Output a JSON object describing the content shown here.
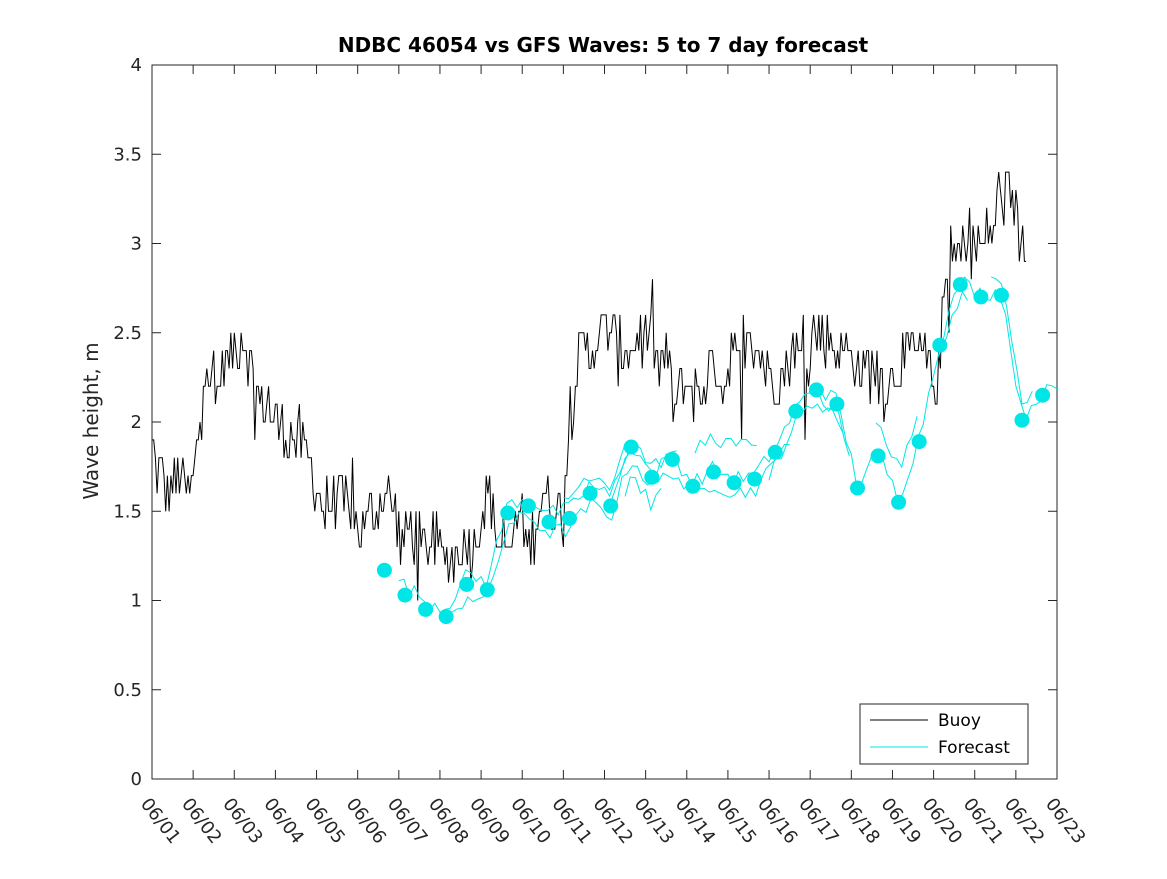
{
  "chart_data": {
    "type": "line",
    "title": "NDBC 46054 vs GFS Waves: 5 to 7 day forecast",
    "xlabel": "",
    "ylabel": "Wave height, m",
    "xlim": [
      0,
      22
    ],
    "ylim": [
      0,
      4
    ],
    "x_unit": "days from 06/01",
    "xticks": [
      0,
      1,
      2,
      3,
      4,
      5,
      6,
      7,
      8,
      9,
      10,
      11,
      12,
      13,
      14,
      15,
      16,
      17,
      18,
      19,
      20,
      21,
      22
    ],
    "xtick_labels": [
      "06/01",
      "06/02",
      "06/03",
      "06/04",
      "06/05",
      "06/06",
      "06/07",
      "06/08",
      "06/09",
      "06/10",
      "06/11",
      "06/12",
      "06/13",
      "06/14",
      "06/15",
      "06/16",
      "06/17",
      "06/18",
      "06/19",
      "06/20",
      "06/21",
      "06/22",
      "06/23"
    ],
    "yticks": [
      0,
      0.5,
      1,
      1.5,
      2,
      2.5,
      3,
      3.5,
      4
    ],
    "ytick_labels": [
      "0",
      "0.5",
      "1",
      "1.5",
      "2",
      "2.5",
      "3",
      "3.5",
      "4"
    ],
    "grid": false,
    "legend": {
      "location": "bottom-right",
      "entries": [
        {
          "label": "Buoy",
          "color": "#000000"
        },
        {
          "label": "Forecast",
          "color": "#00e6e6"
        }
      ]
    },
    "colors": {
      "buoy": "#000000",
      "forecast": "#00e6e6",
      "marker": "#00e6e6"
    },
    "buoy_anchors": {
      "x": [
        0,
        0.15,
        0.4,
        0.7,
        0.95,
        1.1,
        1.3,
        1.5,
        1.7,
        2.0,
        2.2,
        2.4,
        2.6,
        2.85,
        3.0,
        3.3,
        3.6,
        3.9,
        4.2,
        4.5,
        4.8,
        5.1,
        5.4,
        5.7,
        5.9,
        6.05,
        6.3,
        6.6,
        6.9,
        7.2,
        7.5,
        7.8,
        8.0,
        8.2,
        8.45,
        8.6,
        8.8,
        8.95,
        9.1,
        9.3,
        9.5,
        9.7,
        9.9,
        10.1,
        10.3,
        10.5,
        10.7,
        10.9,
        11.1,
        11.3,
        11.6,
        11.9,
        12.1,
        12.3,
        12.5,
        12.7,
        12.9,
        13.1,
        13.3,
        13.5,
        13.7,
        13.9,
        14.1,
        14.3,
        14.6,
        14.9,
        15.1,
        15.3,
        15.5,
        15.7,
        15.9,
        16.1,
        16.3,
        16.6,
        16.9,
        17.2,
        17.5,
        17.8,
        18.1,
        18.4,
        18.7,
        18.9,
        19.1,
        19.25,
        19.4,
        19.6,
        19.8,
        20.0,
        20.2,
        20.45,
        20.6,
        20.8,
        21.0,
        21.1,
        21.25
      ],
      "y": [
        1.9,
        1.7,
        1.6,
        1.7,
        1.6,
        1.9,
        2.4,
        2.1,
        2.3,
        2.4,
        2.5,
        2.3,
        2.1,
        2.1,
        2.0,
        1.9,
        1.9,
        1.7,
        1.5,
        1.6,
        1.5,
        1.4,
        1.5,
        1.6,
        1.5,
        1.3,
        1.4,
        1.3,
        1.3,
        1.2,
        1.3,
        1.3,
        1.5,
        1.6,
        1.3,
        1.2,
        1.4,
        1.5,
        1.3,
        1.4,
        1.6,
        1.5,
        1.5,
        1.8,
        2.3,
        2.4,
        2.4,
        2.5,
        2.5,
        2.4,
        2.4,
        2.5,
        2.5,
        2.3,
        2.4,
        2.1,
        2.2,
        2.2,
        2.1,
        2.3,
        2.3,
        2.2,
        2.4,
        2.3,
        2.5,
        2.3,
        2.3,
        2.2,
        2.4,
        2.4,
        2.3,
        2.5,
        2.5,
        2.4,
        2.4,
        2.3,
        2.3,
        2.2,
        2.3,
        2.4,
        2.4,
        2.3,
        2.2,
        2.7,
        2.9,
        2.9,
        3.0,
        3.0,
        3.0,
        3.1,
        3.3,
        3.2,
        3.2,
        3.0,
        3.0
      ]
    },
    "forecast_days": [
      5.65,
      6.15,
      6.65,
      7.15,
      7.65,
      8.15,
      8.65,
      9.15,
      9.65,
      10.15,
      10.65,
      11.15,
      11.65,
      12.15,
      12.65,
      13.15,
      13.65,
      14.15,
      14.65,
      15.15,
      15.65,
      16.15,
      16.65,
      17.15,
      17.65,
      18.15,
      18.65,
      19.15,
      19.65,
      20.15,
      20.65,
      21.15,
      21.65
    ],
    "forecast_markers": [
      1.17,
      1.03,
      0.95,
      0.91,
      1.09,
      1.06,
      1.49,
      1.53,
      1.44,
      1.46,
      1.6,
      1.53,
      1.86,
      1.69,
      1.79,
      1.64,
      1.72,
      1.66,
      1.68,
      1.83,
      2.06,
      2.18,
      2.1,
      1.63,
      1.81,
      1.55,
      1.89,
      2.43,
      2.77,
      2.7,
      2.71,
      2.01,
      2.15
    ],
    "forecast_series_count": 3,
    "forecast_offsets": [
      0.05,
      -0.06,
      0.02
    ],
    "forecast_lengths": [
      [
        6.0,
        12.8
      ],
      [
        7.3,
        16.8
      ],
      [
        11.0,
        22.0
      ]
    ]
  }
}
